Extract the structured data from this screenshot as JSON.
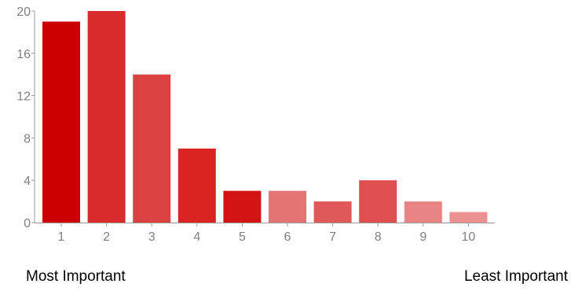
{
  "chart_data": {
    "type": "bar",
    "categories": [
      "1",
      "2",
      "3",
      "4",
      "5",
      "6",
      "7",
      "8",
      "9",
      "10"
    ],
    "values": [
      19,
      20,
      14,
      7,
      3,
      3,
      2,
      4,
      2,
      1
    ],
    "colors": [
      "#cc0000",
      "#d92b2b",
      "#dc4141",
      "#da2424",
      "#d41414",
      "#e67373",
      "#e05858",
      "#df4f4f",
      "#e88484",
      "#eb9191"
    ],
    "ylim": [
      0,
      20
    ],
    "yticks": [
      "0",
      "4",
      "8",
      "12",
      "16",
      "20"
    ],
    "grid": false,
    "title": "",
    "xlabel": "",
    "ylabel": ""
  },
  "labels": {
    "left": "Most Important",
    "right": "Least Important"
  },
  "style": {
    "axis_color": "#999999",
    "tick_label_color": "#808080"
  }
}
